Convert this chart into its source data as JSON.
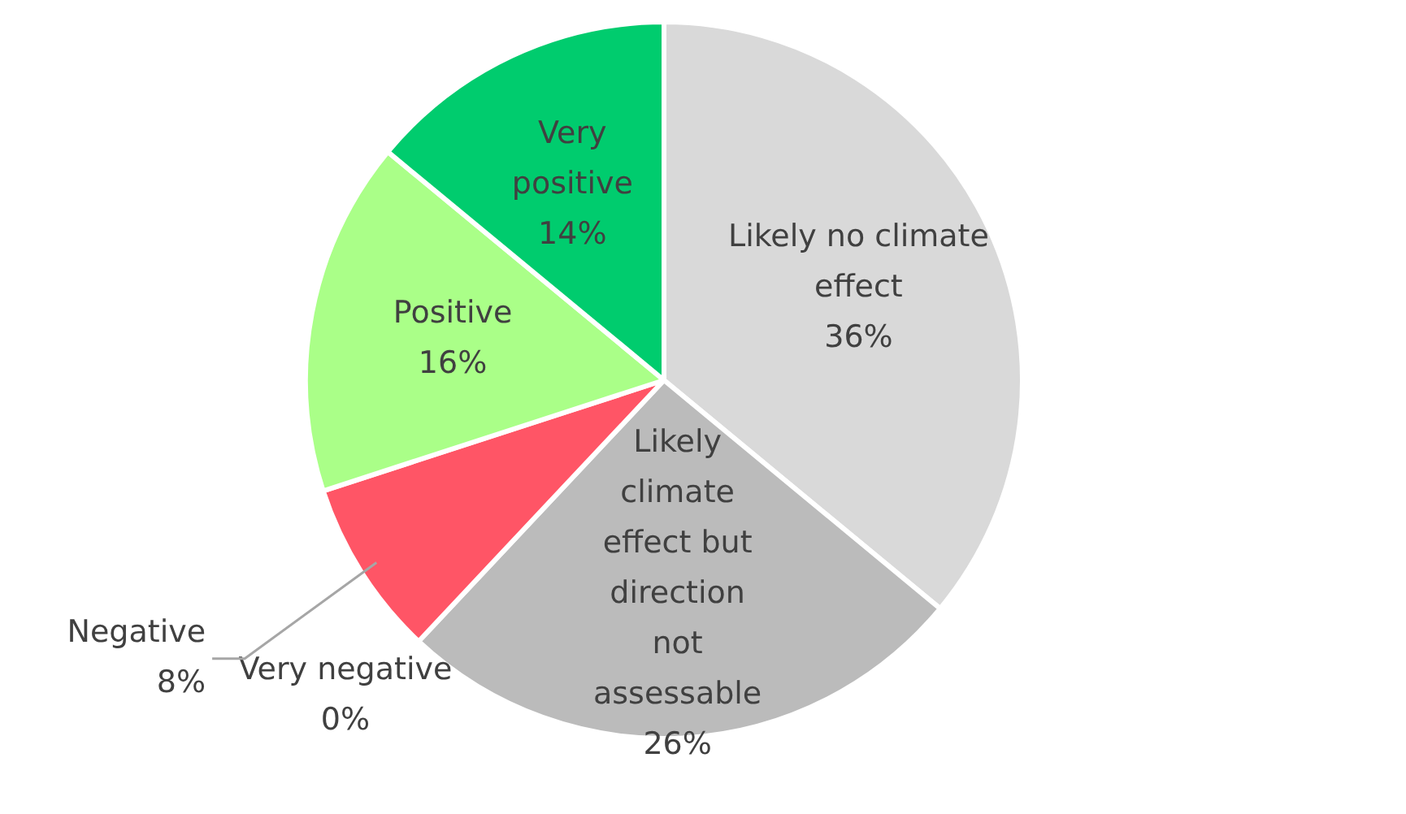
{
  "chart_data": {
    "type": "pie",
    "categories": [
      "Likely no climate effect",
      "Likely climate effect but direction not assessable",
      "Very negative",
      "Negative",
      "Positive",
      "Very positive"
    ],
    "values": [
      36,
      26,
      0,
      8,
      16,
      14
    ],
    "colors": [
      "#d9d9d9",
      "#bbbbbb",
      "#e8202f",
      "#ff5566",
      "#aaff88",
      "#00cc6e"
    ],
    "value_labels": [
      "36%",
      "26%",
      "0%",
      "8%",
      "16%",
      "14%"
    ],
    "legend": false
  }
}
